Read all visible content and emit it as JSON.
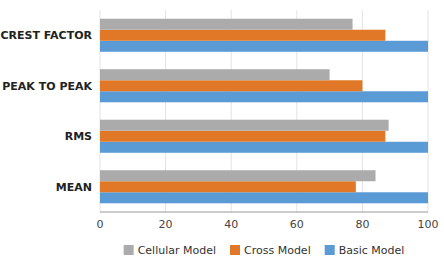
{
  "chart_data": {
    "type": "bar",
    "orientation": "horizontal",
    "categories": [
      "MEAN",
      "RMS",
      "PEAK TO PEAK",
      "CREST FACTOR"
    ],
    "series": [
      {
        "name": "Basic Model",
        "color": "#5B9BD5",
        "values": [
          100,
          100,
          100,
          100
        ]
      },
      {
        "name": "Cross Model",
        "color": "#E07828",
        "values": [
          78,
          87,
          80,
          87
        ]
      },
      {
        "name": "Cellular Model",
        "color": "#ABABAB",
        "values": [
          84,
          88,
          70,
          77
        ]
      }
    ],
    "xlim": [
      0,
      100
    ],
    "xticks": [
      0,
      20,
      40,
      60,
      80,
      100
    ],
    "grid": true,
    "legend": "bottom"
  }
}
